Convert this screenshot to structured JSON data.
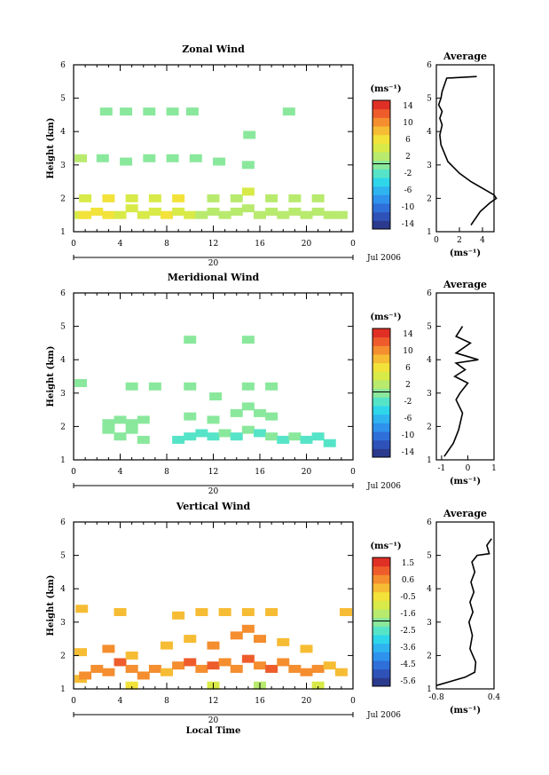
{
  "colors": {
    "colormap": [
      "#2b3a8c",
      "#2f52b8",
      "#2f6fd9",
      "#2f92ec",
      "#2fb4f0",
      "#2fd6ea",
      "#56e4c8",
      "#8ae89c",
      "#b8ea6e",
      "#d8ea48",
      "#f2e23a",
      "#f6bc34",
      "#f48e2e",
      "#ee5c2c",
      "#e03026"
    ]
  },
  "x_axis": {
    "ticks": [
      "0",
      "4",
      "8",
      "12",
      "16",
      "20",
      "0"
    ],
    "date_label": "20",
    "month_label": "Jul 2006",
    "label": "Local Time"
  },
  "panels": [
    {
      "title": "Zonal Wind",
      "ylabel": "Height (km)",
      "yticks": [
        "1",
        "2",
        "3",
        "4",
        "5",
        "6"
      ],
      "colorbar": {
        "unit": "(ms⁻¹)",
        "ticks": [
          "14",
          "10",
          "6",
          "2",
          "-2",
          "-6",
          "-10",
          "-14"
        ]
      },
      "profile": {
        "title": "Average",
        "xticks": [
          "0",
          "2",
          "4"
        ],
        "xlabel": "(ms⁻¹)"
      }
    },
    {
      "title": "Meridional Wind",
      "ylabel": "Height (km)",
      "yticks": [
        "1",
        "2",
        "3",
        "4",
        "5",
        "6"
      ],
      "colorbar": {
        "unit": "(ms⁻¹)",
        "ticks": [
          "14",
          "10",
          "6",
          "2",
          "-2",
          "-6",
          "-10",
          "-14"
        ]
      },
      "profile": {
        "title": "Average",
        "xticks": [
          "-1",
          "0",
          "1"
        ],
        "xlabel": "(ms⁻¹)"
      }
    },
    {
      "title": "Vertical Wind",
      "ylabel": "Height (km)",
      "yticks": [
        "1",
        "2",
        "3",
        "4",
        "5",
        "6"
      ],
      "colorbar": {
        "unit": "(ms⁻¹)",
        "ticks": [
          "1.5",
          "0.6",
          "-0.5",
          "-1.6",
          "-2.5",
          "-3.6",
          "-4.5",
          "-5.6"
        ]
      },
      "profile": {
        "title": "Average",
        "xticks": [
          "-0.8",
          "0.4"
        ],
        "xlabel": "(ms⁻¹)"
      }
    }
  ],
  "chart_data": [
    {
      "type": "heatmap",
      "title": "Zonal Wind",
      "xlabel": "",
      "ylabel": "Height (km)",
      "xlim": [
        0,
        24
      ],
      "ylim": [
        1,
        6
      ],
      "colorbar_range": [
        -16,
        16
      ],
      "cells": [
        [
          0,
          1.5,
          5
        ],
        [
          1,
          1.5,
          6
        ],
        [
          2,
          1.6,
          7
        ],
        [
          3,
          1.5,
          6
        ],
        [
          4,
          1.5,
          5
        ],
        [
          5,
          1.7,
          5
        ],
        [
          6,
          1.5,
          4
        ],
        [
          7,
          1.6,
          5
        ],
        [
          8,
          1.5,
          6
        ],
        [
          9,
          1.6,
          5
        ],
        [
          10,
          1.5,
          4
        ],
        [
          11,
          1.5,
          3
        ],
        [
          12,
          1.6,
          3
        ],
        [
          13,
          1.5,
          3
        ],
        [
          14,
          1.6,
          2
        ],
        [
          15,
          1.7,
          3
        ],
        [
          16,
          1.5,
          2
        ],
        [
          17,
          1.6,
          3
        ],
        [
          18,
          1.5,
          2
        ],
        [
          19,
          1.6,
          3
        ],
        [
          20,
          1.5,
          2
        ],
        [
          21,
          1.6,
          3
        ],
        [
          22,
          1.5,
          2
        ],
        [
          23,
          1.5,
          3
        ],
        [
          1,
          2.0,
          5
        ],
        [
          3,
          2.0,
          6
        ],
        [
          5,
          2.0,
          5
        ],
        [
          7,
          2.0,
          5
        ],
        [
          9,
          2.0,
          6
        ],
        [
          12,
          2.0,
          3
        ],
        [
          14,
          2.0,
          3
        ],
        [
          15,
          2.2,
          4
        ],
        [
          17,
          2.0,
          3
        ],
        [
          19,
          2.0,
          2
        ],
        [
          21,
          2.0,
          3
        ],
        [
          0.5,
          3.2,
          2
        ],
        [
          2.5,
          3.2,
          1
        ],
        [
          4.5,
          3.1,
          1
        ],
        [
          6.5,
          3.2,
          1
        ],
        [
          8.5,
          3.2,
          1
        ],
        [
          10.5,
          3.2,
          1
        ],
        [
          12.5,
          3.1,
          1
        ],
        [
          15,
          3.0,
          1
        ],
        [
          15.1,
          3.9,
          1
        ],
        [
          2.8,
          4.6,
          1
        ],
        [
          4.5,
          4.6,
          1
        ],
        [
          6.5,
          4.6,
          1
        ],
        [
          8.5,
          4.6,
          1
        ],
        [
          10.2,
          4.6,
          1
        ],
        [
          18.5,
          4.6,
          1
        ]
      ]
    },
    {
      "type": "heatmap",
      "title": "Meridional Wind",
      "xlabel": "",
      "ylabel": "Height (km)",
      "xlim": [
        0,
        24
      ],
      "ylim": [
        1,
        6
      ],
      "colorbar_range": [
        -16,
        16
      ],
      "cells": [
        [
          3,
          1.9,
          0
        ],
        [
          4,
          1.7,
          0
        ],
        [
          5,
          1.9,
          1
        ],
        [
          6,
          1.6,
          0
        ],
        [
          9,
          1.6,
          -3
        ],
        [
          10,
          1.7,
          -3
        ],
        [
          11,
          1.8,
          -2
        ],
        [
          12,
          1.7,
          -2
        ],
        [
          13,
          1.8,
          -1
        ],
        [
          14,
          1.7,
          -2
        ],
        [
          15,
          1.9,
          -1
        ],
        [
          16,
          1.8,
          -2
        ],
        [
          17,
          1.7,
          -1
        ],
        [
          18,
          1.6,
          -2
        ],
        [
          19,
          1.7,
          -1
        ],
        [
          20,
          1.6,
          -3
        ],
        [
          21,
          1.7,
          -2
        ],
        [
          22,
          1.5,
          -3
        ],
        [
          3,
          2.1,
          1
        ],
        [
          4,
          2.2,
          0
        ],
        [
          5,
          2.1,
          1
        ],
        [
          6,
          2.2,
          0
        ],
        [
          10,
          2.3,
          -1
        ],
        [
          12,
          2.2,
          0
        ],
        [
          14,
          2.4,
          0
        ],
        [
          15,
          2.6,
          0
        ],
        [
          16,
          2.4,
          -1
        ],
        [
          17,
          2.3,
          -1
        ],
        [
          0.6,
          3.3,
          -1
        ],
        [
          5,
          3.2,
          -1
        ],
        [
          7,
          3.2,
          -1
        ],
        [
          10,
          3.2,
          0
        ],
        [
          12.2,
          2.9,
          -1
        ],
        [
          15,
          3.2,
          0
        ],
        [
          17,
          3.2,
          -1
        ],
        [
          10,
          4.6,
          1
        ],
        [
          15,
          4.6,
          1
        ]
      ]
    },
    {
      "type": "heatmap",
      "title": "Vertical Wind",
      "xlabel": "Local Time",
      "ylabel": "Height (km)",
      "xlim": [
        0,
        24
      ],
      "ylim": [
        1,
        6
      ],
      "colorbar_range": [
        -6.5,
        2.0
      ],
      "cells": [
        [
          0,
          1.3,
          0.2
        ],
        [
          1,
          1.4,
          0.4
        ],
        [
          2,
          1.6,
          0.6
        ],
        [
          3,
          1.5,
          0.8
        ],
        [
          4,
          1.8,
          0.9
        ],
        [
          5,
          1.6,
          0.4
        ],
        [
          6,
          1.4,
          0.5
        ],
        [
          7,
          1.6,
          0.4
        ],
        [
          8,
          1.5,
          0.3
        ],
        [
          9,
          1.7,
          0.7
        ],
        [
          10,
          1.8,
          0.9
        ],
        [
          11,
          1.6,
          0.8
        ],
        [
          12,
          1.7,
          0.9
        ],
        [
          13,
          1.8,
          0.8
        ],
        [
          14,
          1.6,
          0.7
        ],
        [
          15,
          1.9,
          1.0
        ],
        [
          16,
          1.7,
          0.6
        ],
        [
          17,
          1.6,
          0.9
        ],
        [
          18,
          1.8,
          0.7
        ],
        [
          19,
          1.6,
          0.5
        ],
        [
          20,
          1.5,
          0.6
        ],
        [
          21,
          1.6,
          0.4
        ],
        [
          22,
          1.7,
          0.3
        ],
        [
          23,
          1.5,
          0.2
        ],
        [
          0.5,
          2.1,
          0.3
        ],
        [
          3,
          2.2,
          0.5
        ],
        [
          5,
          2.0,
          0.3
        ],
        [
          8,
          2.3,
          0.2
        ],
        [
          10,
          2.5,
          0.3
        ],
        [
          12,
          2.3,
          0.4
        ],
        [
          14,
          2.6,
          0.5
        ],
        [
          15,
          2.8,
          0.6
        ],
        [
          16,
          2.5,
          0.4
        ],
        [
          18,
          2.4,
          0.3
        ],
        [
          20,
          2.2,
          0.2
        ],
        [
          4,
          3.3,
          0.1
        ],
        [
          11,
          3.3,
          0.2
        ],
        [
          13,
          3.3,
          0.3
        ],
        [
          15,
          3.3,
          0.2
        ],
        [
          17,
          3.3,
          0.3
        ],
        [
          24,
          3.3,
          0.2
        ],
        [
          0.7,
          3.4,
          0.1
        ],
        [
          9,
          3.2,
          0.1
        ],
        [
          12,
          1.1,
          -1.2
        ],
        [
          16,
          1.1,
          -1.6
        ],
        [
          21,
          1.1,
          -0.9
        ],
        [
          5,
          1.1,
          -0.6
        ]
      ]
    },
    {
      "type": "line",
      "title": "Average",
      "xlabel": "(ms⁻¹)",
      "ylabel": "",
      "xlim": [
        0,
        5
      ],
      "ylim": [
        1,
        6
      ],
      "x": [
        3.0,
        3.8,
        4.6,
        5.2,
        5.0,
        4.0,
        3.0,
        2.0,
        1.0,
        0.4,
        0.3,
        0.5,
        0.3,
        0.5,
        0.2,
        0.4,
        0.5,
        0.9,
        3.5
      ],
      "y": [
        1.2,
        1.6,
        1.85,
        2.0,
        2.1,
        2.3,
        2.5,
        2.75,
        3.1,
        3.6,
        3.9,
        4.2,
        4.4,
        4.6,
        4.8,
        5.0,
        5.2,
        5.6,
        5.65
      ]
    },
    {
      "type": "line",
      "title": "Average",
      "xlabel": "(ms⁻¹)",
      "ylabel": "",
      "xlim": [
        -1.2,
        1
      ],
      "ylim": [
        1,
        6
      ],
      "x": [
        -0.9,
        -0.55,
        -0.35,
        -0.2,
        -0.45,
        -0.3,
        0.0,
        -0.5,
        -0.1,
        -0.45,
        0.4,
        -0.45,
        0.1,
        -0.45,
        -0.2
      ],
      "y": [
        1.1,
        1.5,
        1.9,
        2.4,
        2.8,
        3.0,
        3.3,
        3.5,
        3.7,
        3.9,
        4.0,
        4.2,
        4.5,
        4.7,
        5.0
      ]
    },
    {
      "type": "line",
      "title": "Average",
      "xlabel": "(ms⁻¹)",
      "ylabel": "",
      "xlim": [
        -0.8,
        0.4
      ],
      "ylim": [
        1,
        6
      ],
      "x": [
        -0.8,
        -0.2,
        0.0,
        0.02,
        -0.1,
        -0.05,
        -0.12,
        -0.04,
        -0.1,
        -0.02,
        -0.08,
        0.0,
        -0.06,
        0.05,
        0.3,
        0.25,
        0.35
      ],
      "y": [
        1.1,
        1.35,
        1.5,
        1.8,
        2.2,
        2.6,
        3.0,
        3.3,
        3.6,
        3.9,
        4.2,
        4.5,
        4.8,
        5.0,
        5.05,
        5.3,
        5.5
      ]
    }
  ]
}
